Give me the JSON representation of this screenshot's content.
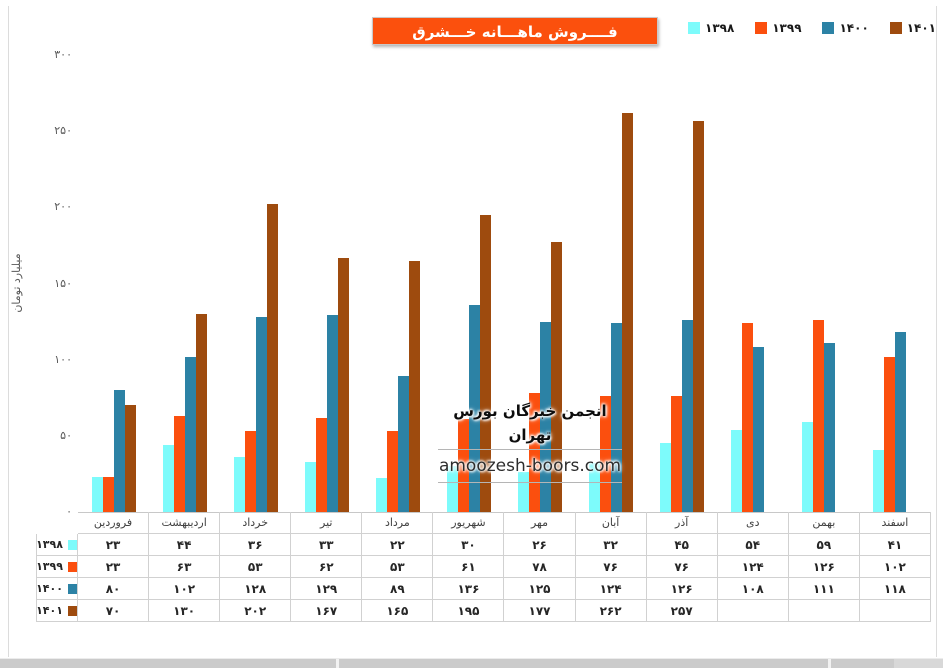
{
  "chart": {
    "title": "فــــروش ماهـــانه خـــشرق"
  },
  "y_axis": {
    "title": "میلیارد تومان"
  },
  "watermark": {
    "line1": "انجمن خبرگان بورس تهران",
    "line2": "amoozesh-boors.com"
  },
  "colors": {
    "title_bg": "#FB500D",
    "axis_text": "#595959",
    "table_border": "#D1D1D1"
  },
  "chart_data": {
    "type": "bar",
    "title": "فــــروش ماهـــانه خـــشرق",
    "ylabel": "میلیارد تومان",
    "ylim": [
      0,
      300
    ],
    "yticks": [
      0,
      50,
      100,
      150,
      200,
      250,
      300
    ],
    "grid": false,
    "legend_position": "top-right",
    "categories": [
      "فروردین",
      "اردیبهشت",
      "خرداد",
      "تیر",
      "مرداد",
      "شهریور",
      "مهر",
      "آبان",
      "آذر",
      "دی",
      "بهمن",
      "اسفند"
    ],
    "series": [
      {
        "name": "۱۳۹۸",
        "color": "#7DFBFB",
        "values": [
          23,
          44,
          36,
          33,
          22,
          30,
          26,
          32,
          45,
          54,
          59,
          41
        ]
      },
      {
        "name": "۱۳۹۹",
        "color": "#FB4F0E",
        "values": [
          23,
          63,
          53,
          62,
          53,
          61,
          78,
          76,
          76,
          124,
          126,
          102
        ]
      },
      {
        "name": "۱۴۰۰",
        "color": "#2C82A5",
        "values": [
          80,
          102,
          128,
          129,
          89,
          136,
          125,
          124,
          126,
          108,
          111,
          118
        ]
      },
      {
        "name": "۱۴۰۱",
        "color": "#9E4B0E",
        "values": [
          70,
          130,
          202,
          167,
          165,
          195,
          177,
          262,
          257,
          null,
          null,
          null
        ]
      }
    ]
  }
}
